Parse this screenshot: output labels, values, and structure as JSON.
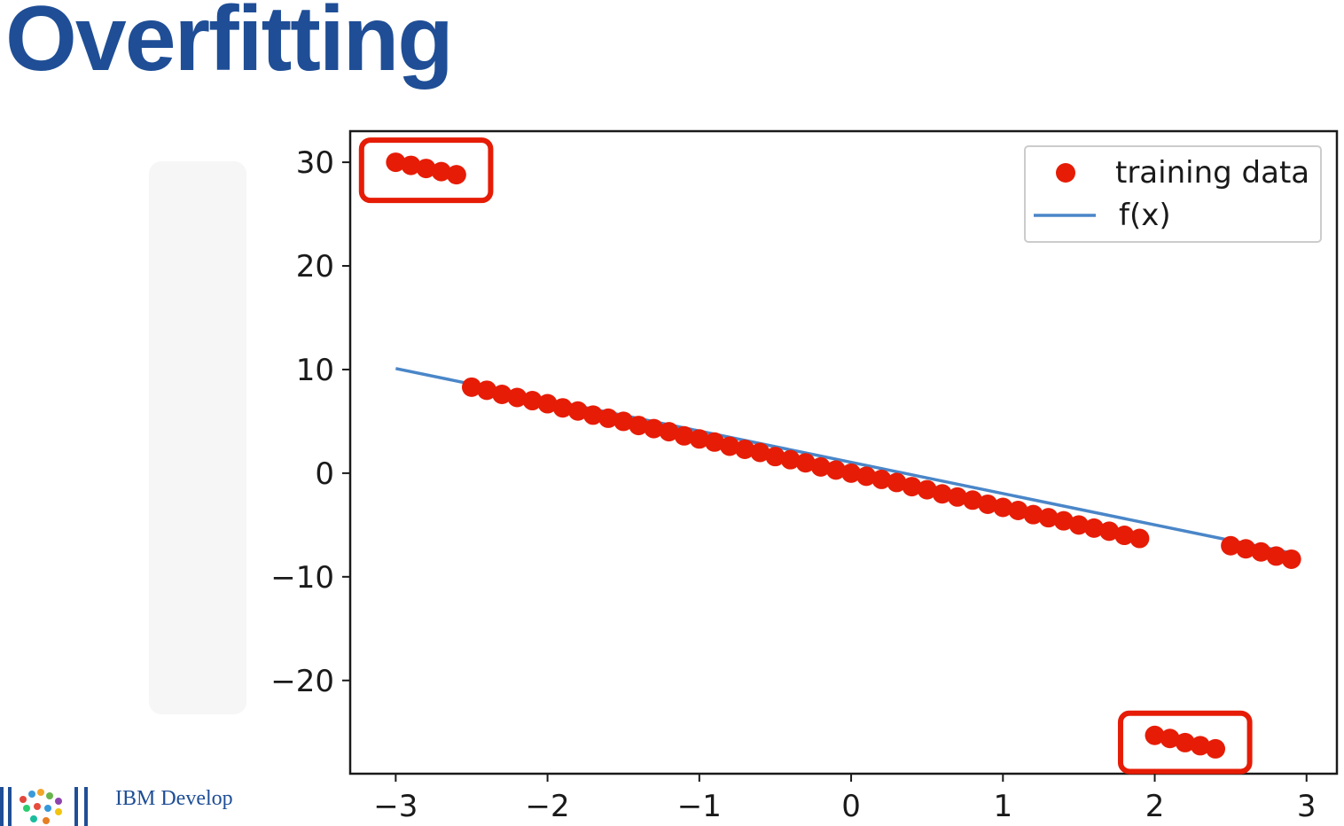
{
  "slide": {
    "title": "Overfitting",
    "footer_brand": "IBM Develop"
  },
  "colors": {
    "title": "#1f4e96",
    "points": "#e61c06",
    "line": "#4a86c8",
    "highlight": "#e61c06"
  },
  "chart_data": {
    "type": "scatter",
    "title": "",
    "xlabel": "",
    "ylabel": "",
    "xlim": [
      -3.3,
      3.2
    ],
    "ylim": [
      -29,
      33
    ],
    "xticks": [
      -3,
      -2,
      -1,
      0,
      1,
      2,
      3
    ],
    "yticks": [
      -20,
      -10,
      0,
      10,
      20,
      30
    ],
    "xtick_labels": [
      "−3",
      "−2",
      "−1",
      "0",
      "1",
      "2",
      "3"
    ],
    "ytick_labels": [
      "−20",
      "−10",
      "0",
      "10",
      "20",
      "30"
    ],
    "legend": {
      "position": "upper right",
      "entries": [
        "training data",
        "f(x)"
      ]
    },
    "series": [
      {
        "name": "training data",
        "kind": "scatter",
        "x": [
          -3.0,
          -2.9,
          -2.8,
          -2.7,
          -2.6,
          -2.5,
          -2.4,
          -2.3,
          -2.2,
          -2.1,
          -2.0,
          -1.9,
          -1.8,
          -1.7,
          -1.6,
          -1.5,
          -1.4,
          -1.3,
          -1.2,
          -1.1,
          -1.0,
          -0.9,
          -0.8,
          -0.7,
          -0.6,
          -0.5,
          -0.4,
          -0.3,
          -0.2,
          -0.1,
          0.0,
          0.1,
          0.2,
          0.3,
          0.4,
          0.5,
          0.6,
          0.7,
          0.8,
          0.9,
          1.0,
          1.1,
          1.2,
          1.3,
          1.4,
          1.5,
          1.6,
          1.7,
          1.8,
          1.9,
          2.0,
          2.1,
          2.2,
          2.3,
          2.4,
          2.5,
          2.6,
          2.7,
          2.8,
          2.9
        ],
        "y": [
          30.0,
          29.7,
          29.4,
          29.1,
          28.8,
          8.3,
          8.0,
          7.6,
          7.3,
          7.0,
          6.7,
          6.3,
          6.0,
          5.6,
          5.3,
          5.0,
          4.6,
          4.3,
          4.0,
          3.6,
          3.3,
          3.0,
          2.6,
          2.3,
          2.0,
          1.6,
          1.3,
          1.0,
          0.6,
          0.3,
          0.0,
          -0.3,
          -0.6,
          -0.9,
          -1.3,
          -1.6,
          -2.0,
          -2.3,
          -2.6,
          -3.0,
          -3.3,
          -3.6,
          -4.0,
          -4.3,
          -4.6,
          -5.0,
          -5.3,
          -5.6,
          -6.0,
          -6.3,
          -25.3,
          -25.6,
          -26.0,
          -26.3,
          -26.6,
          -7.0,
          -7.3,
          -7.6,
          -8.0,
          -8.3
        ]
      },
      {
        "name": "f(x)",
        "kind": "line",
        "x": [
          -3.0,
          2.9
        ],
        "y": [
          10.1,
          -7.7
        ]
      }
    ],
    "annotations": [
      {
        "type": "highlight-box",
        "x_range": [
          -3.05,
          -2.55
        ],
        "y_range": [
          28.2,
          30.6
        ]
      },
      {
        "type": "highlight-box",
        "x_range": [
          1.95,
          2.45
        ],
        "y_range": [
          -26.9,
          -24.7
        ]
      }
    ]
  }
}
